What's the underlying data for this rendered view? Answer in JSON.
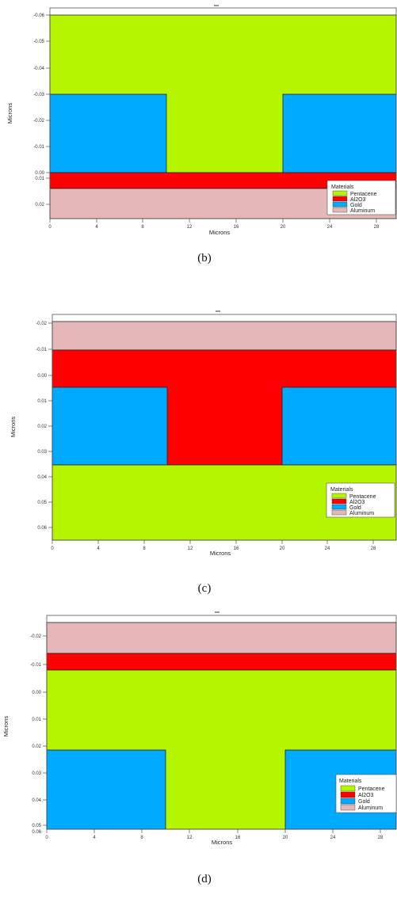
{
  "colors": {
    "Pentacene": "#b5f500",
    "Al2O3": "#ff0000",
    "Gold": "#00aaff",
    "Aluminum": "#e4b8b8"
  },
  "panels": [
    {
      "caption": "(b)",
      "y_ticks": [
        "-0.06",
        "-0.05",
        "-0.04",
        "-0.03",
        "-0.02",
        "-0.01",
        "0.00",
        "0.01",
        "0.02"
      ],
      "x_ticks": [
        "0",
        "4",
        "8",
        "12",
        "16",
        "20",
        "24",
        "28"
      ],
      "xlabel": "Microns",
      "ylabel": "Microns",
      "legend": {
        "title": "Materials",
        "items": [
          "Pentacene",
          "Al2O3",
          "Gold",
          "Aluminum"
        ]
      }
    },
    {
      "caption": "(c)",
      "y_ticks": [
        "-0.02",
        "-0.01",
        "0.00",
        "0.01",
        "0.02",
        "0.03",
        "0.04",
        "0.05",
        "0.06"
      ],
      "x_ticks": [
        "0",
        "4",
        "8",
        "12",
        "16",
        "20",
        "24",
        "28"
      ],
      "xlabel": "Microns",
      "ylabel": "Microns",
      "legend": {
        "title": "Materials",
        "items": [
          "Pentacene",
          "Al2O3",
          "Gold",
          "Aluminum"
        ]
      }
    },
    {
      "caption": "(d)",
      "y_ticks": [
        "-0.02",
        "-0.01",
        "0.00",
        "0.01",
        "0.02",
        "0.03",
        "0.04",
        "0.05",
        "0.06"
      ],
      "x_ticks": [
        "0",
        "4",
        "8",
        "12",
        "16",
        "20",
        "24",
        "28"
      ],
      "xlabel": "Microns",
      "ylabel": "Microns",
      "legend": {
        "title": "Materials",
        "items": [
          "Pentacene",
          "Al2O3",
          "Gold",
          "Aluminum"
        ]
      }
    }
  ]
}
